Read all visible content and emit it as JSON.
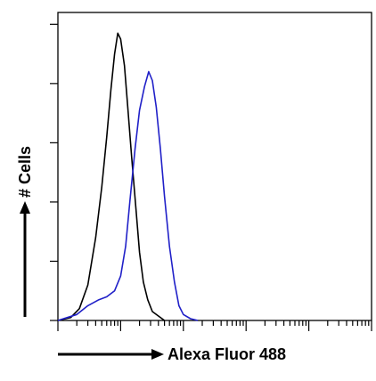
{
  "chart_data": {
    "type": "line",
    "xlabel": "Alexa Fluor 488",
    "ylabel": "# Cells",
    "x_scale": "log",
    "xlim": [
      1,
      100000
    ],
    "ylim": [
      0,
      100
    ],
    "grid": false,
    "legend": "none",
    "series": [
      {
        "color": "#000000",
        "points": [
          [
            1,
            0
          ],
          [
            1.6,
            1
          ],
          [
            2.2,
            4
          ],
          [
            3,
            12
          ],
          [
            4,
            28
          ],
          [
            5,
            45
          ],
          [
            6,
            62
          ],
          [
            7,
            78
          ],
          [
            8,
            90
          ],
          [
            9,
            97
          ],
          [
            10,
            95
          ],
          [
            11.5,
            86
          ],
          [
            13,
            72
          ],
          [
            15,
            55
          ],
          [
            17.5,
            38
          ],
          [
            20,
            23
          ],
          [
            23,
            13
          ],
          [
            27,
            7
          ],
          [
            32,
            3
          ],
          [
            40,
            1.5
          ],
          [
            50,
            0
          ]
        ]
      },
      {
        "color": "#2020c8",
        "points": [
          [
            1,
            0
          ],
          [
            2,
            2
          ],
          [
            3,
            5
          ],
          [
            4.5,
            7
          ],
          [
            6,
            8
          ],
          [
            8,
            10
          ],
          [
            10,
            15
          ],
          [
            12,
            25
          ],
          [
            14,
            40
          ],
          [
            17,
            58
          ],
          [
            20,
            71
          ],
          [
            24,
            79
          ],
          [
            28,
            84
          ],
          [
            32,
            81
          ],
          [
            37,
            72
          ],
          [
            43,
            58
          ],
          [
            50,
            42
          ],
          [
            60,
            25
          ],
          [
            72,
            13
          ],
          [
            85,
            5
          ],
          [
            100,
            2
          ],
          [
            130,
            0.6
          ],
          [
            170,
            0
          ]
        ]
      }
    ]
  }
}
